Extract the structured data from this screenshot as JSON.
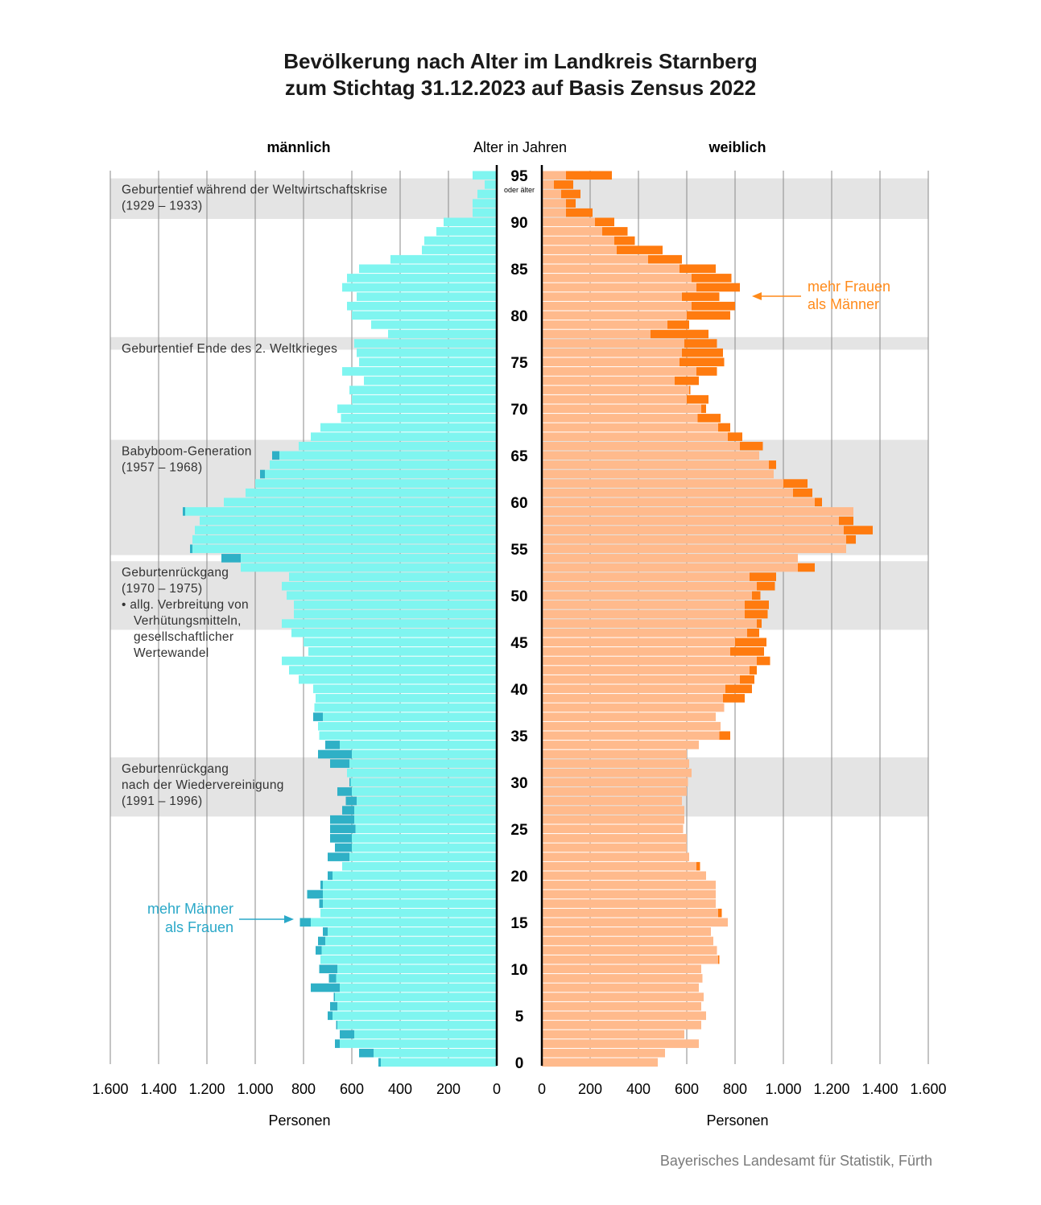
{
  "title": "Bevölkerung nach Alter im Landkreis Starnberg",
  "subtitle": "zum Stichtag 31.12.2023 auf Basis Zensus 2022",
  "labels": {
    "male": "männlich",
    "female": "weiblich",
    "center": "Alter in Jahren",
    "oldest_note": "oder älter",
    "xlabel_left": "Personen",
    "xlabel_right": "Personen",
    "source": "Bayerisches Landesamt für Statistik, Fürth"
  },
  "bands": [
    {
      "ages": [
        91,
        94
      ],
      "lines": [
        "Geburtentief während der Weltwirtschaftskrise",
        "(1929 – 1933)"
      ]
    },
    {
      "ages": [
        77,
        77
      ],
      "lines": [
        "Geburtentief Ende des 2. Weltkrieges"
      ]
    },
    {
      "ages": [
        55,
        66
      ],
      "lines": [
        "Babyboom-Generation",
        "(1957 – 1968)"
      ]
    },
    {
      "ages": [
        47,
        53
      ],
      "lines": [
        "Geburtenrückgang",
        "(1970 – 1975)",
        "• allg. Verbreitung von",
        "Verhütungsmitteln,",
        "gesellschaftlicher",
        "Wertewandel"
      ]
    },
    {
      "ages": [
        27,
        32
      ],
      "lines": [
        "Geburtenrückgang",
        "nach der Wiedervereinigung",
        "(1991 – 1996)"
      ]
    }
  ],
  "callouts": {
    "female_excess": [
      "mehr Frauen",
      "als Männer"
    ],
    "male_excess": [
      "mehr Männer",
      "als Frauen"
    ]
  },
  "colors": {
    "male": "#7ff5f0",
    "male_excess": "#2fb0c6",
    "female": "#ffba8c",
    "female_excess": "#ff7b0f",
    "band": "#e4e4e4",
    "grid": "#8a8a8a",
    "axis": "#000000",
    "callout_male": "#2aa8c8",
    "callout_female": "#ff8a1a"
  },
  "chart_data": {
    "type": "bar",
    "orientation": "horizontal population pyramid",
    "age_labels": [
      "0",
      "5",
      "10",
      "15",
      "20",
      "25",
      "30",
      "35",
      "40",
      "45",
      "50",
      "55",
      "60",
      "65",
      "70",
      "75",
      "80",
      "85",
      "90",
      "95"
    ],
    "x_ticks": [
      "1.600",
      "1.400",
      "1.200",
      "1.000",
      "800",
      "600",
      "400",
      "200",
      "0"
    ],
    "x_ticks_right": [
      "0",
      "200",
      "400",
      "600",
      "800",
      "1.000",
      "1.200",
      "1.400",
      "1.600"
    ],
    "xlim": [
      0,
      1600
    ],
    "grid": true,
    "categories": [
      0,
      1,
      2,
      3,
      4,
      5,
      6,
      7,
      8,
      9,
      10,
      11,
      12,
      13,
      14,
      15,
      16,
      17,
      18,
      19,
      20,
      21,
      22,
      23,
      24,
      25,
      26,
      27,
      28,
      29,
      30,
      31,
      32,
      33,
      34,
      35,
      36,
      37,
      38,
      39,
      40,
      41,
      42,
      43,
      44,
      45,
      46,
      47,
      48,
      49,
      50,
      51,
      52,
      53,
      54,
      55,
      56,
      57,
      58,
      59,
      60,
      61,
      62,
      63,
      64,
      65,
      66,
      67,
      68,
      69,
      70,
      71,
      72,
      73,
      74,
      75,
      76,
      77,
      78,
      79,
      80,
      81,
      82,
      83,
      84,
      85,
      86,
      87,
      88,
      89,
      90,
      91,
      92,
      93,
      94,
      95
    ],
    "series": [
      {
        "name": "männlich",
        "values": [
          490,
          570,
          670,
          650,
          665,
          700,
          690,
          675,
          770,
          695,
          735,
          730,
          750,
          740,
          720,
          815,
          730,
          735,
          785,
          730,
          700,
          640,
          700,
          670,
          690,
          690,
          690,
          640,
          625,
          660,
          610,
          620,
          690,
          740,
          710,
          735,
          740,
          760,
          755,
          750,
          760,
          820,
          860,
          890,
          780,
          800,
          850,
          890,
          840,
          840,
          870,
          890,
          860,
          1060,
          1140,
          1270,
          1260,
          1250,
          1230,
          1300,
          1130,
          1040,
          1000,
          980,
          940,
          930,
          820,
          770,
          730,
          645,
          660,
          600,
          610,
          550,
          640,
          570,
          580,
          590,
          450,
          520,
          600,
          620,
          580,
          640,
          620,
          570,
          440,
          310,
          300,
          250,
          220,
          100,
          100,
          80,
          50,
          100
        ]
      },
      {
        "name": "weiblich",
        "values": [
          480,
          510,
          650,
          590,
          660,
          680,
          660,
          670,
          650,
          665,
          660,
          735,
          725,
          710,
          700,
          770,
          745,
          720,
          720,
          720,
          680,
          655,
          610,
          600,
          600,
          585,
          590,
          590,
          580,
          600,
          605,
          620,
          610,
          600,
          650,
          780,
          740,
          720,
          755,
          840,
          870,
          880,
          890,
          945,
          920,
          930,
          900,
          910,
          935,
          940,
          905,
          965,
          970,
          1130,
          1060,
          1260,
          1300,
          1370,
          1290,
          1290,
          1160,
          1120,
          1100,
          960,
          970,
          900,
          915,
          830,
          780,
          740,
          680,
          690,
          615,
          650,
          725,
          755,
          750,
          725,
          690,
          610,
          780,
          800,
          735,
          820,
          785,
          720,
          580,
          500,
          385,
          355,
          300,
          210,
          140,
          160,
          130,
          290
        ]
      }
    ]
  }
}
